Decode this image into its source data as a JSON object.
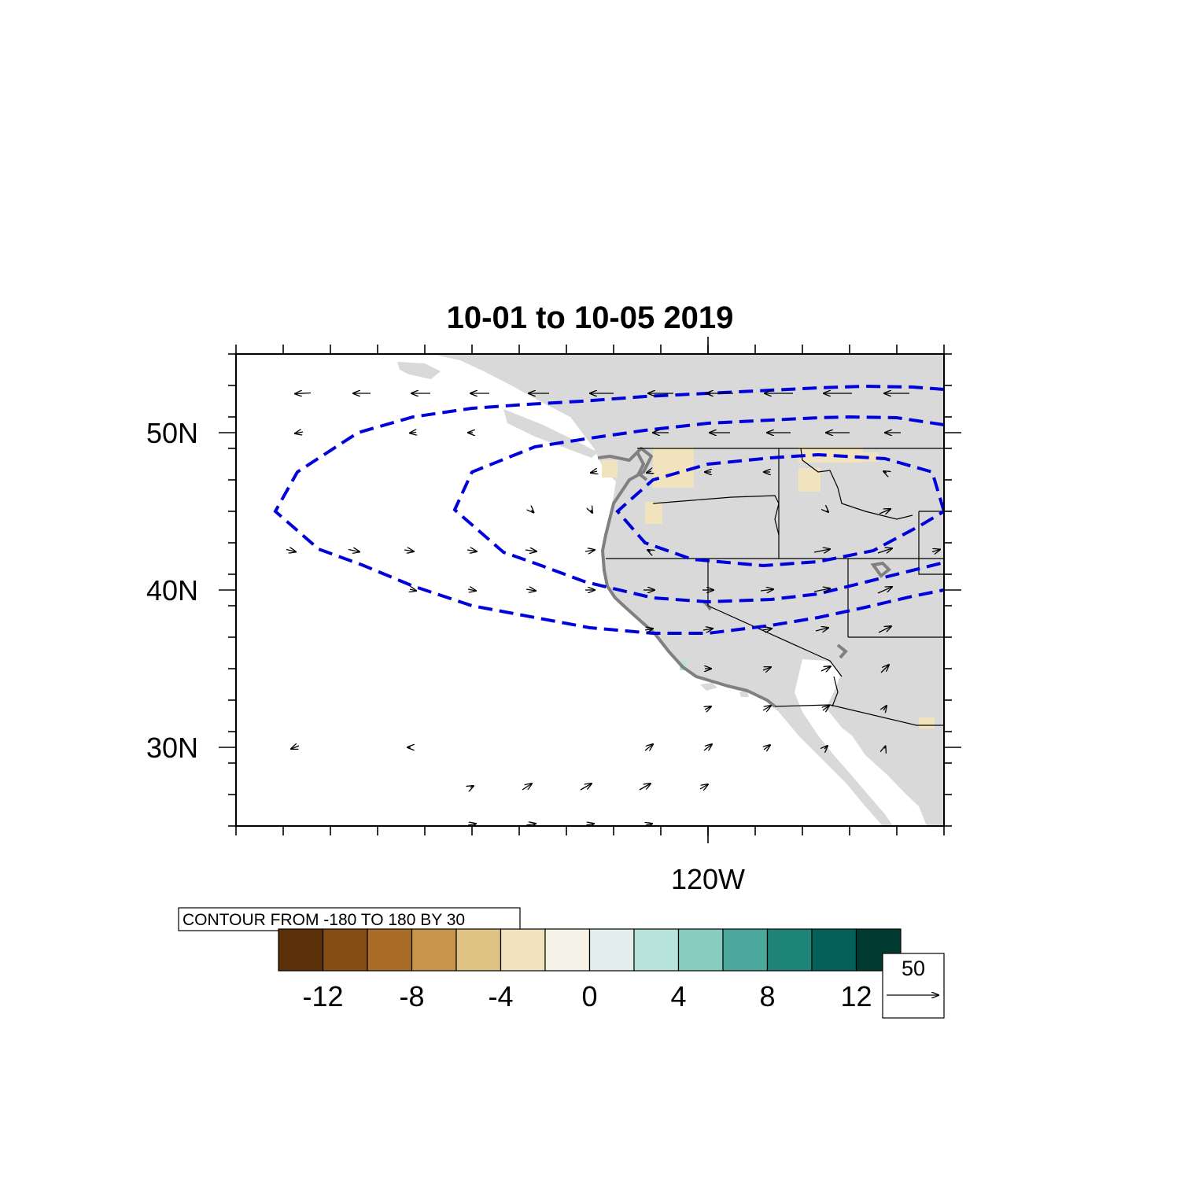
{
  "title": "10-01 to 10-05 2019",
  "latitude_labels": [
    "50N",
    "40N",
    "30N"
  ],
  "longitude_labels": [
    "120W"
  ],
  "contour_info": "CONTOUR FROM -180 TO 180 BY 30",
  "colorbar": {
    "labels": [
      "-12",
      "-8",
      "-4",
      "0",
      "4",
      "8",
      "12"
    ],
    "colors": [
      "#5a3008",
      "#874c12",
      "#a96d27",
      "#c8944a",
      "#dfc384",
      "#f0e3bd",
      "#f4f1e6",
      "#e1eeec",
      "#b6e2da",
      "#87ccbf",
      "#4aa89c",
      "#1f8478",
      "#04615a",
      "#013a30"
    ]
  },
  "vector_reference": {
    "magnitude": "50"
  },
  "colors": {
    "land": "#d9d9d9",
    "coastline": "#808080",
    "contour": "#0000dd",
    "wind_vector": "#000000",
    "negative_anomaly": "#f0e3bd",
    "positive_anomaly": "#b6e2da"
  }
}
